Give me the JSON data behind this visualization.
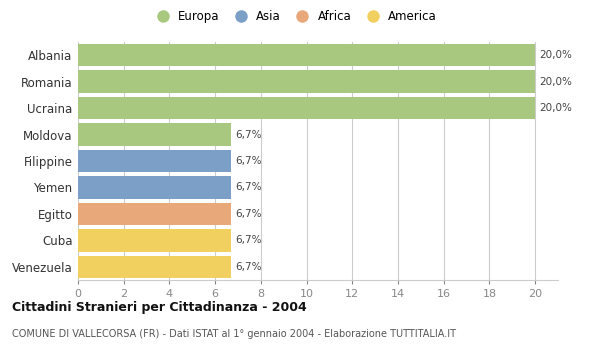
{
  "countries": [
    "Albania",
    "Romania",
    "Ucraina",
    "Moldova",
    "Filippine",
    "Yemen",
    "Egitto",
    "Cuba",
    "Venezuela"
  ],
  "values": [
    20.0,
    20.0,
    20.0,
    6.7,
    6.7,
    6.7,
    6.7,
    6.7,
    6.7
  ],
  "labels": [
    "20,0%",
    "20,0%",
    "20,0%",
    "6,7%",
    "6,7%",
    "6,7%",
    "6,7%",
    "6,7%",
    "6,7%"
  ],
  "colors": [
    "#a8c880",
    "#a8c880",
    "#a8c880",
    "#a8c880",
    "#7b9fc7",
    "#7b9fc7",
    "#e8a87a",
    "#f2d060",
    "#f2d060"
  ],
  "legend_labels": [
    "Europa",
    "Asia",
    "Africa",
    "America"
  ],
  "legend_colors": [
    "#a8c880",
    "#7b9fc7",
    "#e8a87a",
    "#f2d060"
  ],
  "xlim": [
    0,
    21
  ],
  "xticks": [
    0,
    2,
    4,
    6,
    8,
    10,
    12,
    14,
    16,
    18,
    20
  ],
  "title": "Cittadini Stranieri per Cittadinanza - 2004",
  "subtitle": "COMUNE DI VALLECORSA (FR) - Dati ISTAT al 1° gennaio 2004 - Elaborazione TUTTITALIA.IT",
  "background_color": "#ffffff",
  "grid_color": "#cccccc",
  "bar_height": 0.85
}
